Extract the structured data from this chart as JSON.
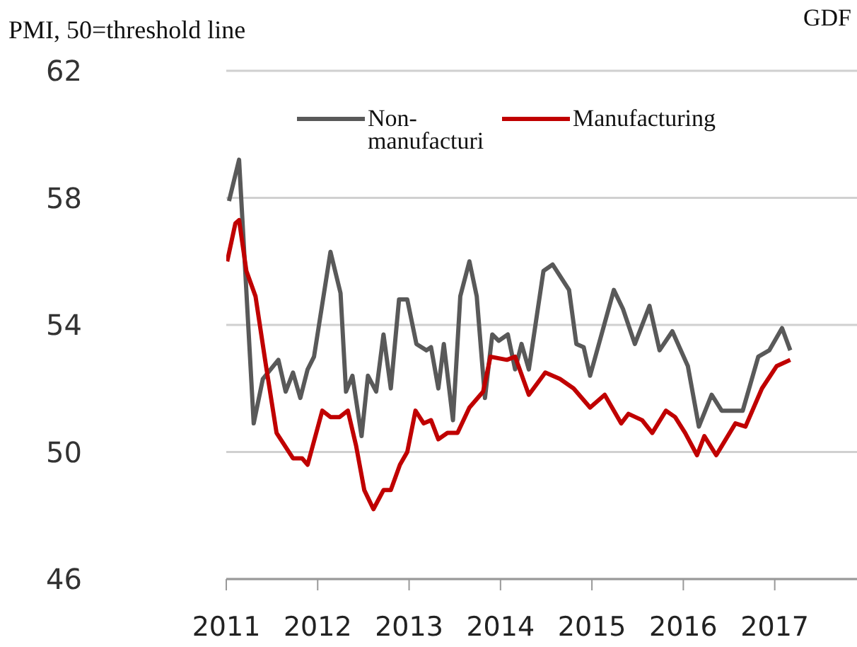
{
  "chart_data": {
    "type": "line",
    "title": "PMI, 50=threshold line",
    "annotations": [
      "GDF"
    ],
    "xlim": [
      2011,
      2017.9
    ],
    "xticks": [
      2011,
      2012,
      2013,
      2014,
      2015,
      2016,
      2017
    ],
    "ylim": [
      46,
      62
    ],
    "yticks": [
      46,
      50,
      54,
      58,
      62
    ],
    "grid": "y",
    "legend": "top",
    "marker": "none",
    "line_style": "solid",
    "series": [
      {
        "name": "Non-manufacturi",
        "color": "#595959",
        "x": [
          2011.03,
          2011.14,
          2011.3,
          2011.4,
          2011.57,
          2011.65,
          2011.73,
          2011.81,
          2011.89,
          2011.96,
          2012.14,
          2012.25,
          2012.31,
          2012.38,
          2012.48,
          2012.55,
          2012.64,
          2012.72,
          2012.8,
          2012.89,
          2012.98,
          2013.08,
          2013.19,
          2013.24,
          2013.32,
          2013.38,
          2013.48,
          2013.56,
          2013.66,
          2013.74,
          2013.83,
          2013.91,
          2013.98,
          2014.08,
          2014.16,
          2014.23,
          2014.31,
          2014.47,
          2014.57,
          2014.75,
          2014.83,
          2014.91,
          2014.98,
          2015.24,
          2015.34,
          2015.47,
          2015.63,
          2015.74,
          2015.88,
          2016.05,
          2016.17,
          2016.31,
          2016.42,
          2016.52,
          2016.65,
          2016.82,
          2016.94,
          2017.08,
          2017.17
        ],
        "values": [
          57.9,
          59.2,
          50.9,
          52.3,
          52.9,
          51.9,
          52.5,
          51.7,
          52.6,
          53.0,
          56.3,
          55.0,
          51.9,
          52.4,
          50.5,
          52.4,
          51.9,
          53.7,
          52.0,
          54.8,
          54.8,
          53.4,
          53.2,
          53.3,
          52.0,
          53.4,
          51.0,
          54.9,
          56.0,
          54.9,
          51.7,
          53.7,
          53.5,
          53.7,
          52.6,
          53.4,
          52.6,
          55.7,
          55.9,
          55.1,
          53.4,
          53.3,
          52.4,
          55.1,
          54.5,
          53.4,
          54.6,
          53.2,
          53.8,
          52.7,
          50.8,
          51.8,
          51.3,
          51.3,
          51.3,
          53.0,
          53.2,
          53.9,
          53.2
        ]
      },
      {
        "name": "Manufacturing",
        "color": "#c00000",
        "x": [
          2011.01,
          2011.1,
          2011.14,
          2011.22,
          2011.32,
          2011.43,
          2011.55,
          2011.73,
          2011.83,
          2011.89,
          2012.05,
          2012.14,
          2012.24,
          2012.33,
          2012.42,
          2012.51,
          2012.61,
          2012.72,
          2012.8,
          2012.9,
          2012.98,
          2013.07,
          2013.16,
          2013.24,
          2013.32,
          2013.42,
          2013.53,
          2013.66,
          2013.81,
          2013.89,
          2014.07,
          2014.16,
          2014.31,
          2014.49,
          2014.65,
          2014.8,
          2014.98,
          2015.14,
          2015.32,
          2015.4,
          2015.55,
          2015.66,
          2015.81,
          2015.91,
          2016.02,
          2016.15,
          2016.23,
          2016.36,
          2016.57,
          2016.68,
          2016.86,
          2017.02,
          2017.17
        ],
        "values": [
          56.0,
          57.2,
          57.3,
          55.7,
          54.9,
          52.8,
          50.6,
          49.8,
          49.8,
          49.6,
          51.3,
          51.1,
          51.1,
          51.3,
          50.2,
          48.8,
          48.2,
          48.8,
          48.8,
          49.6,
          50.0,
          51.3,
          50.9,
          51.0,
          50.4,
          50.6,
          50.6,
          51.4,
          51.9,
          53.0,
          52.9,
          53.0,
          51.8,
          52.5,
          52.3,
          52.0,
          51.4,
          51.8,
          50.9,
          51.2,
          51.0,
          50.6,
          51.3,
          51.1,
          50.6,
          49.9,
          50.5,
          49.9,
          50.9,
          50.8,
          52.0,
          52.7,
          52.9
        ]
      }
    ]
  }
}
